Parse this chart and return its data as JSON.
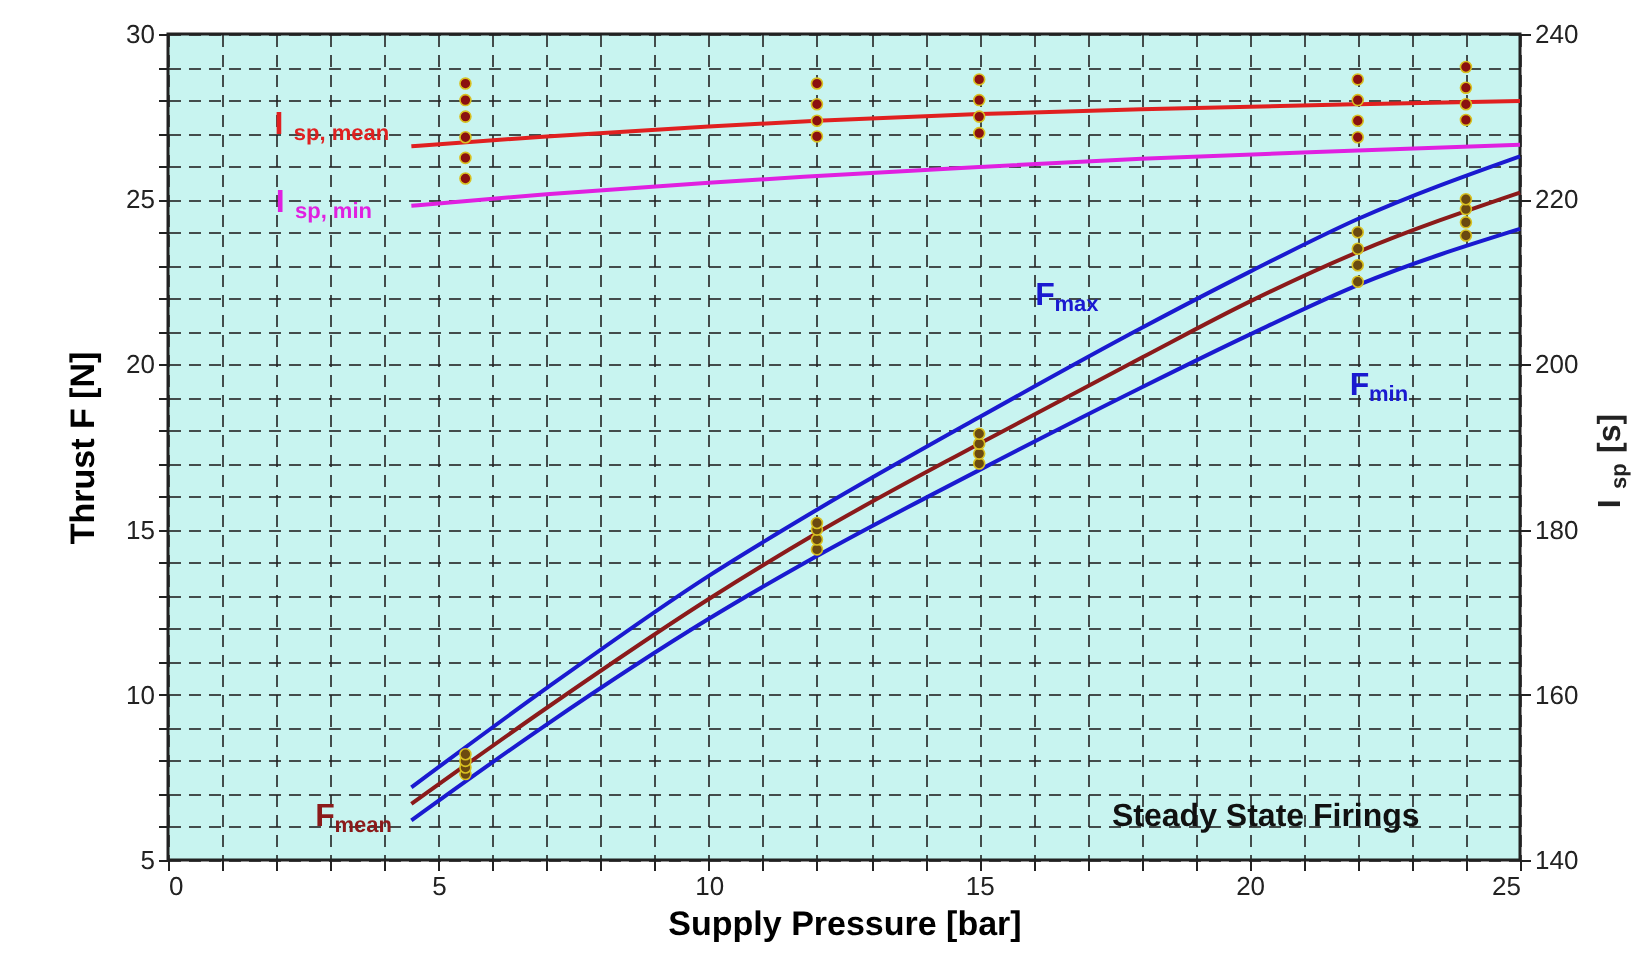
{
  "chart_data": {
    "type": "line",
    "xlabel": "Supply Pressure [bar]",
    "ylabel": "Thrust F [N]",
    "y2label": "I$_{sp}$ [s]",
    "xlim": [
      0,
      25
    ],
    "xticks": [
      0,
      {
        "value": 1,
        "label": null
      },
      {
        "value": 2,
        "label": null
      },
      {
        "value": 3,
        "label": null
      },
      {
        "value": 4,
        "label": null
      },
      5,
      {
        "value": 6,
        "label": null
      },
      {
        "value": 7,
        "label": null
      },
      {
        "value": 8,
        "label": null
      },
      {
        "value": 9,
        "label": null
      },
      10,
      {
        "value": 11,
        "label": null
      },
      {
        "value": 12,
        "label": null
      },
      {
        "value": 13,
        "label": null
      },
      {
        "value": 14,
        "label": null
      },
      15,
      {
        "value": 16,
        "label": null
      },
      {
        "value": 17,
        "label": null
      },
      {
        "value": 18,
        "label": null
      },
      {
        "value": 19,
        "label": null
      },
      20,
      {
        "value": 21,
        "label": null
      },
      {
        "value": 22,
        "label": null
      },
      {
        "value": 23,
        "label": null
      },
      {
        "value": 24,
        "label": null
      },
      25
    ],
    "ylim": [
      5,
      30
    ],
    "yticks": [
      5,
      {
        "value": 6,
        "label": null
      },
      {
        "value": 7,
        "label": null
      },
      {
        "value": 8,
        "label": null
      },
      {
        "value": 9,
        "label": null
      },
      10,
      {
        "value": 11,
        "label": null
      },
      {
        "value": 12,
        "label": null
      },
      {
        "value": 13,
        "label": null
      },
      {
        "value": 14,
        "label": null
      },
      15,
      {
        "value": 16,
        "label": null
      },
      {
        "value": 17,
        "label": null
      },
      {
        "value": 18,
        "label": null
      },
      {
        "value": 19,
        "label": null
      },
      20,
      {
        "value": 21,
        "label": null
      },
      {
        "value": 22,
        "label": null
      },
      {
        "value": 23,
        "label": null
      },
      {
        "value": 24,
        "label": null
      },
      25,
      {
        "value": 26,
        "label": null
      },
      {
        "value": 27,
        "label": null
      },
      {
        "value": 28,
        "label": null
      },
      {
        "value": 29,
        "label": null
      },
      30
    ],
    "y2lim": [
      140,
      240
    ],
    "y2ticks": [
      140,
      160,
      180,
      200,
      220,
      240
    ],
    "grid": true,
    "series": [
      {
        "name": "F$_{mean}$",
        "color": "#8b1a1a",
        "x": [
          4.5,
          7,
          10,
          12,
          15,
          18,
          20,
          22,
          25
        ],
        "values": [
          6.7,
          9.6,
          12.9,
          14.9,
          17.6,
          20.2,
          21.9,
          23.4,
          25.2
        ]
      },
      {
        "name": "F$_{max}$",
        "color": "#1a1ad0",
        "x": [
          4.5,
          7,
          10,
          12,
          15,
          18,
          20,
          22,
          25
        ],
        "values": [
          7.2,
          10.2,
          13.6,
          15.6,
          18.4,
          21.1,
          22.8,
          24.4,
          26.3
        ]
      },
      {
        "name": "F$_{min}$",
        "color": "#1a1ad0",
        "x": [
          4.5,
          7,
          10,
          12,
          15,
          18,
          20,
          22,
          25
        ],
        "values": [
          6.2,
          9.1,
          12.3,
          14.2,
          16.8,
          19.3,
          20.9,
          22.4,
          24.1
        ]
      },
      {
        "name": "I$_{sp, mean}$",
        "axis": "y2",
        "color": "#e02020",
        "x": [
          4.5,
          7,
          10,
          12,
          15,
          18,
          22,
          25
        ],
        "values": [
          226.4,
          227.6,
          228.8,
          229.5,
          230.3,
          230.9,
          231.5,
          231.9
        ]
      },
      {
        "name": "I$_{sp, min}$",
        "axis": "y2",
        "color": "#e020e0",
        "x": [
          4.5,
          7,
          10,
          12,
          15,
          18,
          22,
          25
        ],
        "values": [
          219.2,
          220.6,
          222.0,
          222.8,
          223.9,
          224.9,
          225.9,
          226.6
        ]
      },
      {
        "type": "scatter",
        "color": "#6b4a10",
        "x": [
          5.5,
          5.5,
          5.5,
          5.5,
          12,
          12,
          12,
          12,
          15,
          15,
          15,
          15,
          22,
          22,
          22,
          22,
          24,
          24,
          24,
          24
        ],
        "values": [
          7.6,
          7.8,
          8.0,
          8.2,
          14.4,
          14.7,
          15.0,
          15.2,
          17.0,
          17.3,
          17.6,
          17.9,
          22.5,
          23.0,
          23.5,
          24.0,
          23.9,
          24.3,
          24.7,
          25.0
        ]
      },
      {
        "type": "scatter",
        "axis": "y2",
        "color": "#8b1010",
        "x": [
          5.5,
          5.5,
          5.5,
          5.5,
          5.5,
          5.5,
          12,
          12,
          12,
          12,
          15,
          15,
          15,
          15,
          22,
          22,
          22,
          22,
          24,
          24,
          24,
          24
        ],
        "values": [
          222.5,
          225,
          227.5,
          230,
          232,
          234,
          227.6,
          229.5,
          231.5,
          234,
          228,
          230,
          232,
          234.5,
          227.5,
          229.5,
          232,
          234.5,
          229.6,
          231.5,
          233.5,
          236
        ]
      }
    ],
    "annotations": [
      "Steady State Firings"
    ]
  }
}
